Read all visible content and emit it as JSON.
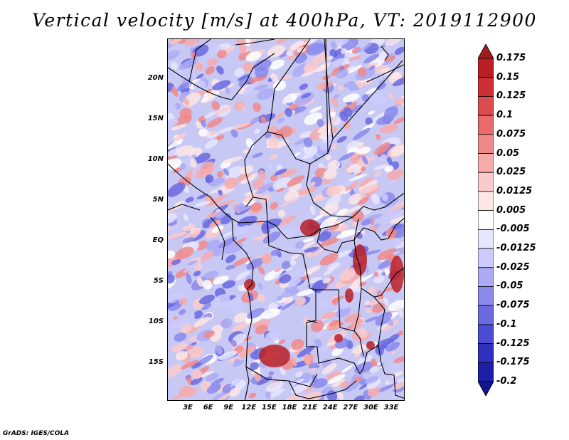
{
  "title": "Vertical velocity [m/s] at 400hPa, VT: 2019112900",
  "credit": "GrADS: IGES/COLA",
  "lat_labels": [
    "20N",
    "15N",
    "10N",
    "5N",
    "EQ",
    "5S",
    "10S",
    "15S"
  ],
  "lon_labels": [
    "3E",
    "6E",
    "9E",
    "12E",
    "15E",
    "18E",
    "21E",
    "24E",
    "27E",
    "30E",
    "33E"
  ],
  "colorbar": {
    "labels": [
      "0.175",
      "0.15",
      "0.125",
      "0.1",
      "0.075",
      "0.05",
      "0.025",
      "0.0125",
      "0.005",
      "-0.005",
      "-0.0125",
      "-0.025",
      "-0.05",
      "-0.075",
      "-0.1",
      "-0.125",
      "-0.175",
      "-0.2"
    ],
    "colors": [
      "#a31a1c",
      "#b92025",
      "#cc3034",
      "#dc4c4c",
      "#e86a6a",
      "#f08a8a",
      "#f7aaaa",
      "#fbcbcb",
      "#fde6e6",
      "#ffffff",
      "#e6e6ff",
      "#cbcbff",
      "#aaaaf5",
      "#8a8aec",
      "#6a6ae0",
      "#4c4cd2",
      "#3030bf",
      "#1e1ea6",
      "#141490"
    ]
  },
  "chart_data": {
    "type": "heatmap",
    "title": "Vertical velocity [m/s] at 400hPa, VT: 2019112900",
    "x_ticks": [
      "3E",
      "6E",
      "9E",
      "12E",
      "15E",
      "18E",
      "21E",
      "24E",
      "27E",
      "30E",
      "33E"
    ],
    "y_ticks": [
      "20N",
      "15N",
      "10N",
      "5N",
      "EQ",
      "5S",
      "10S",
      "15S"
    ],
    "colorbar_levels": [
      0.175,
      0.15,
      0.125,
      0.1,
      0.075,
      0.05,
      0.025,
      0.0125,
      0.005,
      -0.005,
      -0.0125,
      -0.025,
      -0.05,
      -0.075,
      -0.1,
      -0.125,
      -0.175,
      -0.2
    ]
  }
}
